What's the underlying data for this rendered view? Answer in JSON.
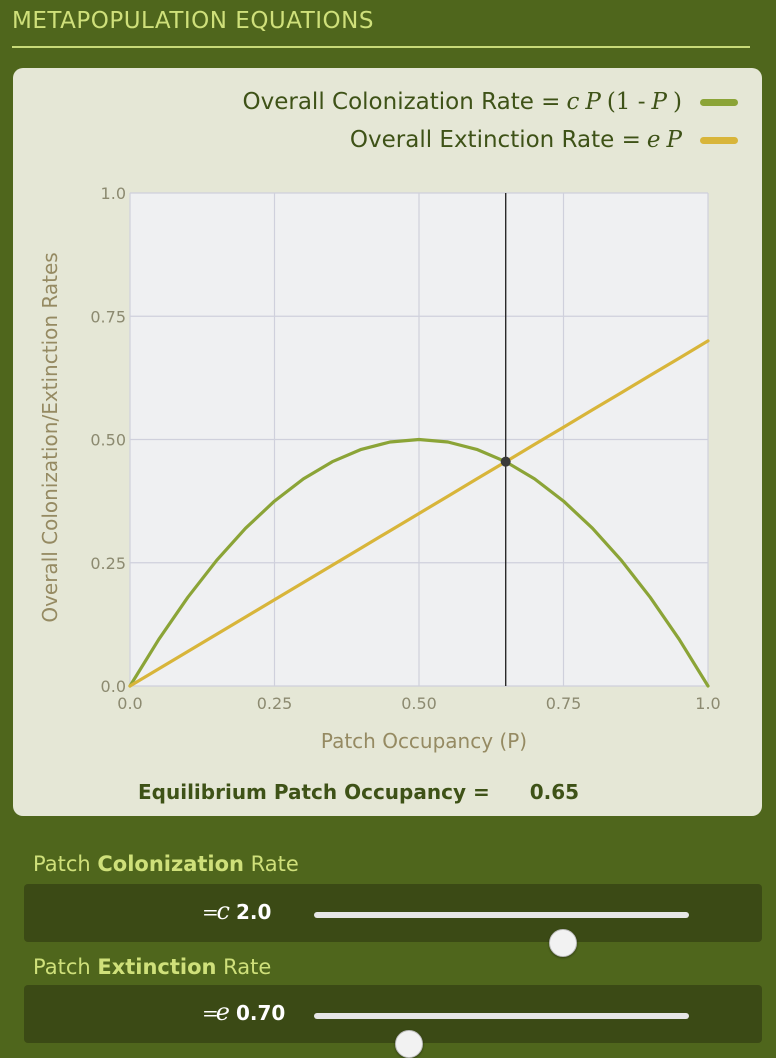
{
  "header": {
    "title": "METAPOPULATION EQUATIONS"
  },
  "legend": {
    "colonization": {
      "label": "Overall Colonization Rate = ",
      "c": "c",
      "P": "P",
      "open": " (1 - ",
      "P2": "P",
      "close": ")",
      "color": "#8ba437"
    },
    "extinction": {
      "label": "Overall Extinction Rate = ",
      "e": "e",
      "P": "P",
      "color": "#d8b53a"
    }
  },
  "equilibrium": {
    "label": "Equilibrium Patch Occupancy =",
    "value": "0.65"
  },
  "controls": {
    "colonization": {
      "label_pre": "Patch ",
      "label_bold": "Colonization",
      "label_post": " Rate",
      "symbol": "c",
      "equals": "=",
      "value_text": "2.0",
      "value": 2.0,
      "fraction": 0.66
    },
    "extinction": {
      "label_pre": "Patch ",
      "label_bold": "Extinction",
      "label_post": " Rate",
      "symbol": "e",
      "equals": "=",
      "value_text": "0.70",
      "value": 0.7,
      "fraction": 0.25
    }
  },
  "chart_data": {
    "type": "line",
    "xlabel": "Patch Occupancy (P)",
    "ylabel": "Overall Colonization/Extinction Rates",
    "xlim": [
      0,
      1
    ],
    "ylim": [
      0,
      1
    ],
    "xticks": [
      "0.0",
      "0.25",
      "0.50",
      "0.75",
      "1.0"
    ],
    "yticks": [
      "0.0",
      "0.25",
      "0.50",
      "0.75",
      "1.0"
    ],
    "grid": true,
    "legend_position": "top-right",
    "x": [
      0,
      0.05,
      0.1,
      0.15,
      0.2,
      0.25,
      0.3,
      0.35,
      0.4,
      0.45,
      0.5,
      0.55,
      0.6,
      0.65,
      0.7,
      0.75,
      0.8,
      0.85,
      0.9,
      0.95,
      1.0
    ],
    "series": [
      {
        "name": "Overall Colonization Rate = c P (1 - P)",
        "color": "#8ba437",
        "values": [
          0,
          0.095,
          0.18,
          0.255,
          0.32,
          0.375,
          0.42,
          0.455,
          0.48,
          0.495,
          0.5,
          0.495,
          0.48,
          0.455,
          0.42,
          0.375,
          0.32,
          0.255,
          0.18,
          0.095,
          0
        ]
      },
      {
        "name": "Overall Extinction Rate = e P",
        "color": "#d8b53a",
        "values": [
          0,
          0.035,
          0.07,
          0.105,
          0.14,
          0.175,
          0.21,
          0.245,
          0.28,
          0.315,
          0.35,
          0.385,
          0.42,
          0.455,
          0.49,
          0.525,
          0.56,
          0.595,
          0.63,
          0.665,
          0.7
        ]
      }
    ],
    "equilibrium_point": {
      "x": 0.65,
      "y": 0.455
    }
  }
}
